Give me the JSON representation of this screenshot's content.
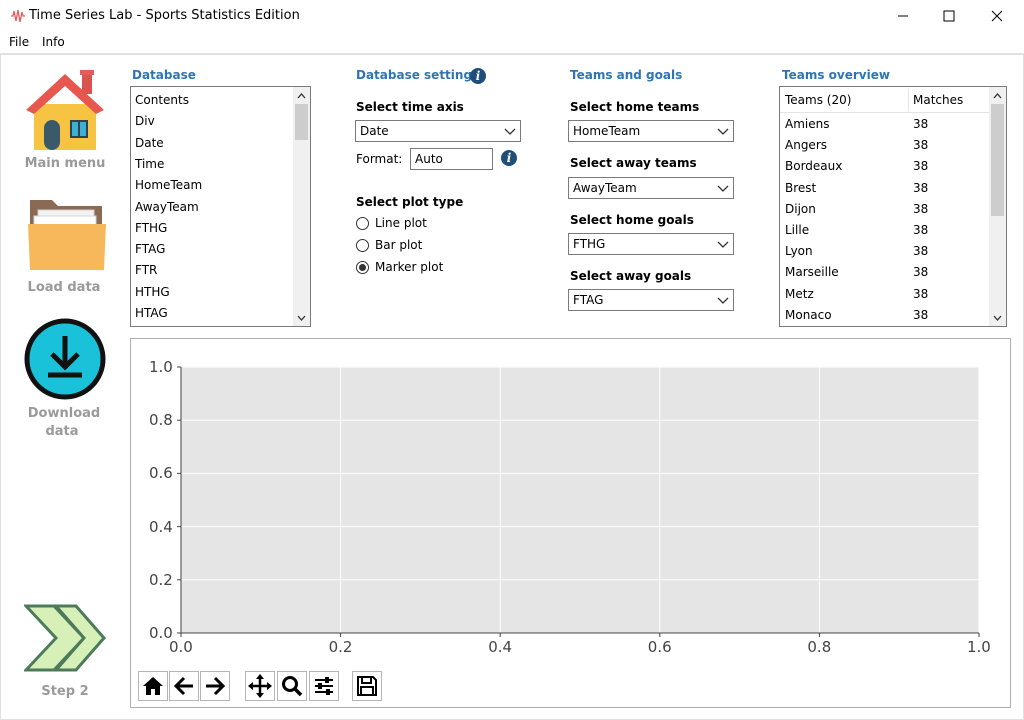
{
  "window": {
    "title": "Time Series Lab - Sports Statistics Edition"
  },
  "menu": [
    "File",
    "Info"
  ],
  "sidebar": {
    "main_menu": "Main menu",
    "load_data": "Load data",
    "download_line1": "Download",
    "download_line2": "data",
    "step": "Step 2"
  },
  "database": {
    "title": "Database",
    "items": [
      "Contents",
      "Div",
      "Date",
      "Time",
      "HomeTeam",
      "AwayTeam",
      "FTHG",
      "FTAG",
      "FTR",
      "HTHG",
      "HTAG"
    ]
  },
  "settings": {
    "title": "Database settings",
    "time_axis_label": "Select time axis",
    "time_axis_value": "Date",
    "format_label": "Format:",
    "format_value": "Auto",
    "plot_type_label": "Select plot type",
    "plot_types": [
      "Line plot",
      "Bar plot",
      "Marker plot"
    ],
    "selected_plot_type": "Marker plot"
  },
  "teams_goals": {
    "title": "Teams and goals",
    "home_teams_label": "Select home teams",
    "home_teams_value": "HomeTeam",
    "away_teams_label": "Select away teams",
    "away_teams_value": "AwayTeam",
    "home_goals_label": "Select home goals",
    "home_goals_value": "FTHG",
    "away_goals_label": "Select away goals",
    "away_goals_value": "FTAG"
  },
  "overview": {
    "title": "Teams overview",
    "col_teams": "Teams (20)",
    "col_matches": "Matches",
    "rows": [
      {
        "team": "Amiens",
        "matches": "38"
      },
      {
        "team": "Angers",
        "matches": "38"
      },
      {
        "team": "Bordeaux",
        "matches": "38"
      },
      {
        "team": "Brest",
        "matches": "38"
      },
      {
        "team": "Dijon",
        "matches": "38"
      },
      {
        "team": "Lille",
        "matches": "38"
      },
      {
        "team": "Lyon",
        "matches": "38"
      },
      {
        "team": "Marseille",
        "matches": "38"
      },
      {
        "team": "Metz",
        "matches": "38"
      },
      {
        "team": "Monaco",
        "matches": "38"
      }
    ]
  },
  "plot": {
    "x_ticks": [
      "0.0",
      "0.2",
      "0.4",
      "0.6",
      "0.8",
      "1.0"
    ],
    "y_ticks": [
      "0.0",
      "0.2",
      "0.4",
      "0.6",
      "0.8",
      "1.0"
    ],
    "xlim": [
      0,
      1
    ],
    "ylim": [
      0,
      1
    ],
    "background": "#e5e5e5",
    "grid": true
  },
  "toolbar_icons": [
    "home-icon",
    "back-arrow-icon",
    "forward-arrow-icon",
    "pan-icon",
    "zoom-icon",
    "configure-icon",
    "save-icon"
  ]
}
